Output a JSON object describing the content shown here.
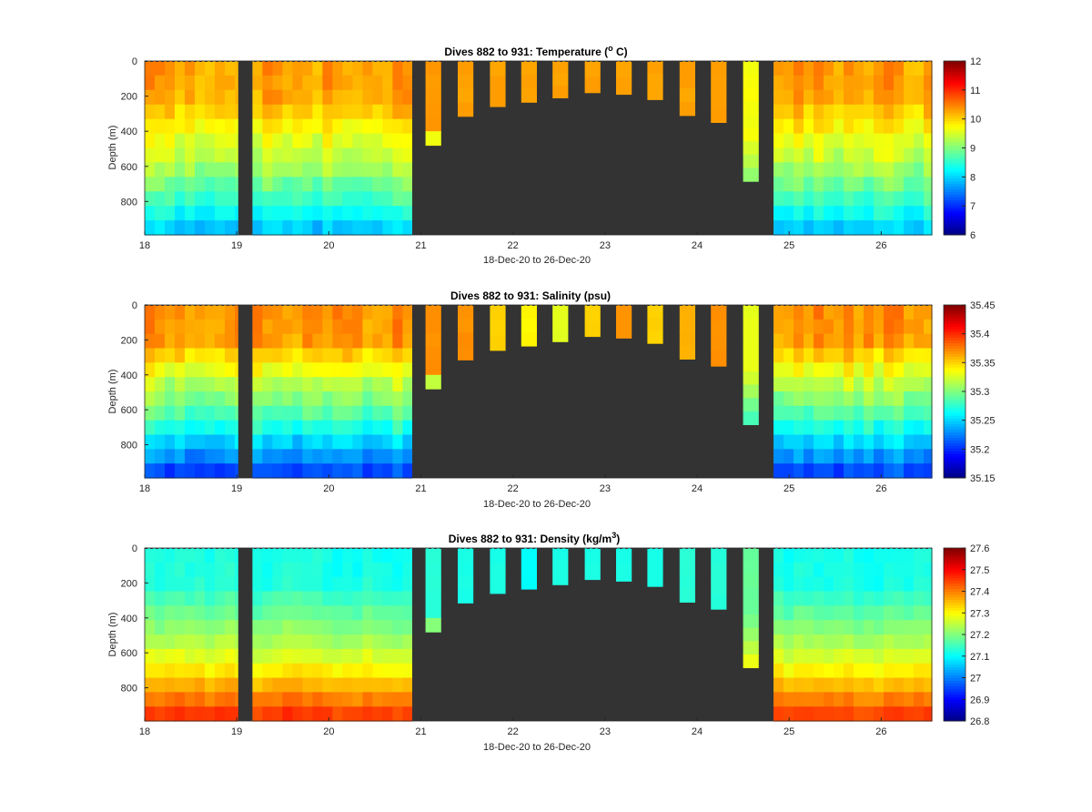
{
  "window": {
    "title": "Dives 882 to 931"
  },
  "chart_data": [
    {
      "type": "heatmap",
      "title": "Dives 882 to 931: Temperature (",
      "title_superscript": "o",
      "title_suffix": " C)",
      "xlabel": "18-Dec-20 to 26-Dec-20",
      "ylabel": "Depth (m)",
      "xlim": [
        18,
        26.55
      ],
      "ylim": [
        0,
        990
      ],
      "y_reversed": true,
      "xticks": [
        "18",
        "19",
        "20",
        "21",
        "22",
        "23",
        "24",
        "25",
        "26"
      ],
      "yticks": [
        "0",
        "200",
        "400",
        "600",
        "800"
      ],
      "colorbar": {
        "min": 6,
        "max": 12,
        "ticks": [
          "6",
          "7",
          "8",
          "9",
          "10",
          "11",
          "12"
        ],
        "colormap": "jet"
      },
      "profile": {
        "surface": 10.3,
        "mid": 9.5,
        "deep": 7.8,
        "thermocline_depth": 350,
        "noise": 0.25
      },
      "short_profiles": [
        10.35,
        10.3,
        10.3,
        10.3,
        10.3,
        10.3,
        10.3,
        10.3,
        10.3,
        10.3,
        9.7
      ],
      "background": "#333333"
    },
    {
      "type": "heatmap",
      "title": "Dives 882 to 931: Salinity (psu)",
      "title_superscript": "",
      "title_suffix": "",
      "xlabel": "18-Dec-20 to 26-Dec-20",
      "ylabel": "Depth (m)",
      "xlim": [
        18,
        26.55
      ],
      "ylim": [
        0,
        990
      ],
      "y_reversed": true,
      "xticks": [
        "18",
        "19",
        "20",
        "21",
        "22",
        "23",
        "24",
        "25",
        "26"
      ],
      "yticks": [
        "0",
        "200",
        "400",
        "600",
        "800"
      ],
      "colorbar": {
        "min": 35.15,
        "max": 35.45,
        "ticks": [
          "35.15",
          "35.2",
          "35.25",
          "35.3",
          "35.35",
          "35.4",
          "35.45"
        ],
        "colormap": "jet"
      },
      "profile": {
        "surface": 35.37,
        "mid": 35.31,
        "deep": 35.2,
        "thermocline_depth": 350,
        "noise": 0.012
      },
      "short_profiles": [
        35.37,
        35.37,
        35.35,
        35.34,
        35.33,
        35.35,
        35.37,
        35.35,
        35.36,
        35.37,
        35.33
      ],
      "background": "#333333"
    },
    {
      "type": "heatmap",
      "title": "Dives 882 to 931: Density (kg/m",
      "title_superscript": "3",
      "title_suffix": ")",
      "xlabel": "18-Dec-20 to 26-Dec-20",
      "ylabel": "Depth (m)",
      "xlim": [
        18,
        26.55
      ],
      "ylim": [
        0,
        990
      ],
      "y_reversed": true,
      "xticks": [
        "18",
        "19",
        "20",
        "21",
        "22",
        "23",
        "24",
        "25",
        "26"
      ],
      "yticks": [
        "0",
        "200",
        "400",
        "600",
        "800"
      ],
      "colorbar": {
        "min": 26.8,
        "max": 27.6,
        "ticks": [
          "26.8",
          "26.9",
          "27",
          "27.1",
          "27.2",
          "27.3",
          "27.4",
          "27.5",
          "27.6"
        ],
        "colormap": "jet"
      },
      "profile": {
        "surface": 27.12,
        "mid": 27.22,
        "deep": 27.48,
        "thermocline_depth": 350,
        "noise": 0.02,
        "increasing": true
      },
      "short_profiles": [
        27.13,
        27.12,
        27.12,
        27.1,
        27.12,
        27.12,
        27.12,
        27.12,
        27.13,
        27.13,
        27.18
      ],
      "background": "#333333"
    }
  ],
  "dives": {
    "full_segments": [
      {
        "x_start": 18.0,
        "x_end": 19.01,
        "depth": 990
      },
      {
        "x_start": 19.17,
        "x_end": 20.9,
        "depth": 990
      },
      {
        "x_start": 24.83,
        "x_end": 26.55,
        "depth": 990
      }
    ],
    "short": [
      {
        "x_start": 21.05,
        "x_end": 21.22,
        "depth": 480
      },
      {
        "x_start": 21.4,
        "x_end": 21.57,
        "depth": 315
      },
      {
        "x_start": 21.75,
        "x_end": 21.92,
        "depth": 260
      },
      {
        "x_start": 22.09,
        "x_end": 22.26,
        "depth": 235
      },
      {
        "x_start": 22.43,
        "x_end": 22.6,
        "depth": 210
      },
      {
        "x_start": 22.78,
        "x_end": 22.95,
        "depth": 180
      },
      {
        "x_start": 23.12,
        "x_end": 23.29,
        "depth": 190
      },
      {
        "x_start": 23.46,
        "x_end": 23.63,
        "depth": 220
      },
      {
        "x_start": 23.81,
        "x_end": 23.98,
        "depth": 310
      },
      {
        "x_start": 24.15,
        "x_end": 24.32,
        "depth": 350
      },
      {
        "x_start": 24.5,
        "x_end": 24.67,
        "depth": 685
      }
    ]
  }
}
